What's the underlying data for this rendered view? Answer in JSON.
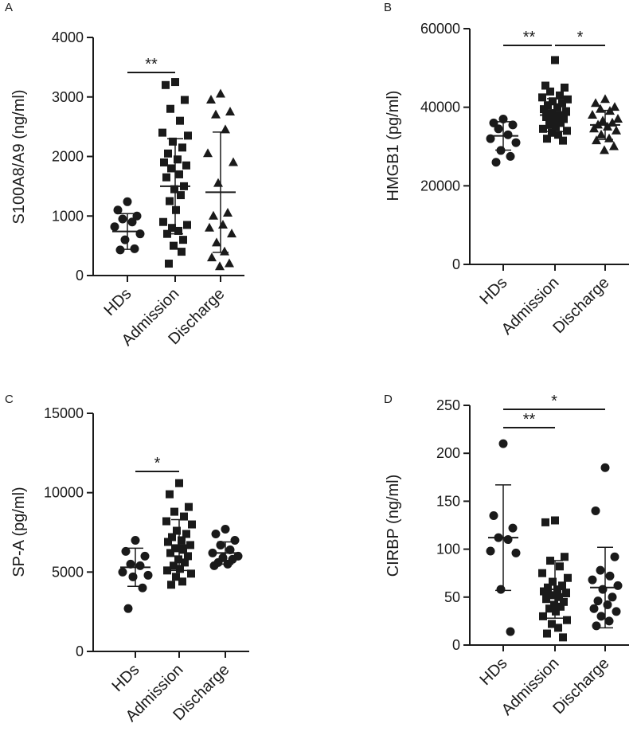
{
  "figure": {
    "panel_count": 4
  },
  "chart_data": [
    {
      "panel": "A",
      "type": "scatter",
      "ylabel": "S100A8/A9 (ng/ml)",
      "ylim": [
        0,
        4000
      ],
      "yticks": [
        0,
        1000,
        2000,
        3000,
        4000
      ],
      "ytick_labels": [
        "0",
        "1000",
        "2000",
        "3000",
        "4000"
      ],
      "categories": [
        "HDs",
        "Admission",
        "Discharge"
      ],
      "markers": [
        "circle",
        "square",
        "triangle"
      ],
      "groups": [
        {
          "name": "HDs",
          "mean": 740,
          "sd": 300,
          "points": [
            1240,
            1100,
            1000,
            950,
            900,
            820,
            700,
            600,
            450,
            430
          ]
        },
        {
          "name": "Admission",
          "mean": 1500,
          "sd": 800,
          "points": [
            3250,
            3200,
            2950,
            2800,
            2600,
            2400,
            2350,
            2250,
            2150,
            2050,
            1950,
            1900,
            1850,
            1800,
            1700,
            1650,
            1500,
            1450,
            1350,
            1250,
            1100,
            900,
            850,
            800,
            750,
            700,
            600,
            500,
            400,
            200
          ]
        },
        {
          "name": "Discharge",
          "mean": 1400,
          "sd": 1010,
          "points": [
            3050,
            2950,
            2750,
            2700,
            2450,
            2050,
            1900,
            1550,
            1050,
            1000,
            850,
            800,
            700,
            550,
            400,
            300,
            200,
            150
          ]
        }
      ],
      "significance": [
        {
          "from": "HDs",
          "to": "Admission",
          "label": "**"
        }
      ]
    },
    {
      "panel": "B",
      "type": "scatter",
      "ylabel": "HMGB1 (pg/ml)",
      "ylim": [
        0,
        60000
      ],
      "yticks": [
        0,
        20000,
        40000,
        60000
      ],
      "ytick_labels": [
        "0",
        "20000",
        "40000",
        "60000"
      ],
      "categories": [
        "HDs",
        "Admission",
        "Discharge"
      ],
      "markers": [
        "circle",
        "square",
        "triangle"
      ],
      "groups": [
        {
          "name": "HDs",
          "mean": 32700,
          "sd": 3600,
          "points": [
            37000,
            36000,
            35500,
            34500,
            33000,
            32000,
            31000,
            29000,
            27500,
            26000
          ]
        },
        {
          "name": "Admission",
          "mean": 38000,
          "sd": 4200,
          "points": [
            52000,
            45500,
            45000,
            44000,
            43000,
            42500,
            42000,
            41500,
            41000,
            40500,
            40000,
            39500,
            39000,
            38500,
            38000,
            37500,
            37000,
            36500,
            36000,
            35500,
            35000,
            34500,
            34000,
            33500,
            33000,
            32000,
            31500
          ]
        },
        {
          "name": "Discharge",
          "mean": 35500,
          "sd": 3700,
          "points": [
            42000,
            41000,
            40000,
            39500,
            39000,
            38000,
            37000,
            36500,
            36000,
            35500,
            35000,
            34500,
            34000,
            33000,
            32000,
            31500,
            30000,
            29000
          ]
        }
      ],
      "significance": [
        {
          "from": "HDs",
          "to": "Admission",
          "label": "**"
        },
        {
          "from": "Admission",
          "to": "Discharge",
          "label": "*"
        }
      ]
    },
    {
      "panel": "C",
      "type": "scatter",
      "ylabel": "SP-A (pg/ml)",
      "ylim": [
        0,
        15000
      ],
      "yticks": [
        0,
        5000,
        10000,
        15000
      ],
      "ytick_labels": [
        "0",
        "5000",
        "10000",
        "15000"
      ],
      "categories": [
        "HDs",
        "Admission",
        "Discharge"
      ],
      "markers": [
        "circle",
        "square",
        "circle"
      ],
      "groups": [
        {
          "name": "HDs",
          "mean": 5300,
          "sd": 1200,
          "points": [
            7000,
            6300,
            6000,
            5500,
            5400,
            5000,
            4800,
            4700,
            4000,
            2700
          ]
        },
        {
          "name": "Admission",
          "mean": 6700,
          "sd": 1600,
          "points": [
            10600,
            9900,
            9100,
            8800,
            8500,
            8200,
            8000,
            7600,
            7400,
            7200,
            7000,
            6900,
            6700,
            6500,
            6400,
            6200,
            6000,
            5800,
            5600,
            5400,
            5200,
            5100,
            4900,
            4700,
            4400,
            4200
          ]
        },
        {
          "name": "Discharge",
          "mean": 6200,
          "sd": 700,
          "points": [
            7700,
            7400,
            7000,
            6700,
            6400,
            6200,
            6000,
            5900,
            5800,
            5600,
            5500,
            5400
          ]
        }
      ],
      "significance": [
        {
          "from": "HDs",
          "to": "Admission",
          "label": "*"
        }
      ]
    },
    {
      "panel": "D",
      "type": "scatter",
      "ylabel": "CIRBP (ng/ml)",
      "ylim": [
        0,
        250
      ],
      "yticks": [
        0,
        50,
        100,
        150,
        200,
        250
      ],
      "ytick_labels": [
        "0",
        "50",
        "100",
        "150",
        "200",
        "250"
      ],
      "categories": [
        "HDs",
        "Admission",
        "Discharge"
      ],
      "markers": [
        "circle",
        "square",
        "circle"
      ],
      "groups": [
        {
          "name": "HDs",
          "mean": 112,
          "sd": 55,
          "points": [
            210,
            135,
            122,
            112,
            110,
            98,
            96,
            58,
            14
          ]
        },
        {
          "name": "Admission",
          "mean": 58,
          "sd": 30,
          "points": [
            130,
            128,
            92,
            88,
            82,
            75,
            70,
            66,
            62,
            60,
            58,
            56,
            54,
            52,
            50,
            48,
            45,
            42,
            40,
            38,
            35,
            30,
            26,
            22,
            18,
            12,
            8
          ]
        },
        {
          "name": "Discharge",
          "mean": 60,
          "sd": 42,
          "points": [
            185,
            140,
            92,
            78,
            72,
            68,
            62,
            58,
            50,
            46,
            42,
            38,
            35,
            30,
            25,
            20
          ]
        }
      ],
      "significance": [
        {
          "from": "HDs",
          "to": "Admission",
          "label": "**"
        },
        {
          "from": "HDs",
          "to": "Discharge",
          "label": "*"
        }
      ]
    }
  ]
}
